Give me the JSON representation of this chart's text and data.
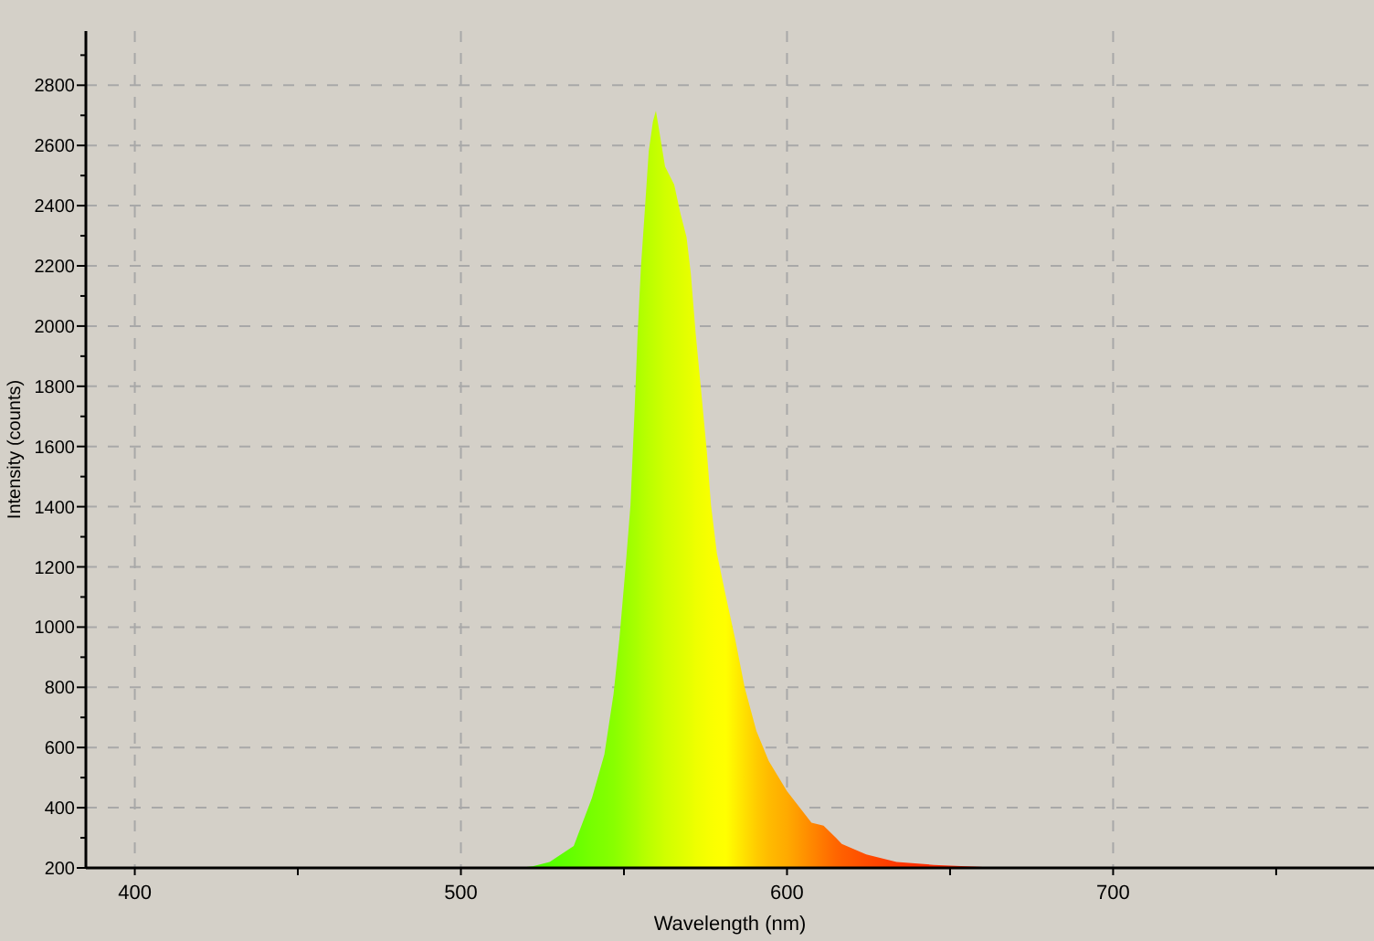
{
  "chart_data": {
    "type": "area",
    "xlabel": "Wavelength (nm)",
    "ylabel": "Intensity (counts)",
    "xlim": [
      385,
      780
    ],
    "ylim": [
      200,
      2980
    ],
    "xticks": [
      400,
      {
        "value": 450,
        "label": null
      },
      500,
      {
        "value": 550,
        "label": null
      },
      600,
      {
        "value": 650,
        "label": null
      },
      700,
      {
        "value": 750,
        "label": null
      }
    ],
    "yticks": [
      200,
      {
        "value": 300,
        "label": null
      },
      400,
      {
        "value": 500,
        "label": null
      },
      600,
      {
        "value": 700,
        "label": null
      },
      800,
      {
        "value": 900,
        "label": null
      },
      1000,
      {
        "value": 1100,
        "label": null
      },
      1200,
      {
        "value": 1300,
        "label": null
      },
      1400,
      {
        "value": 1500,
        "label": null
      },
      1600,
      {
        "value": 1700,
        "label": null
      },
      1800,
      {
        "value": 1900,
        "label": null
      },
      2000,
      {
        "value": 2100,
        "label": null
      },
      2200,
      {
        "value": 2300,
        "label": null
      },
      2400,
      {
        "value": 2500,
        "label": null
      },
      2600,
      {
        "value": 2700,
        "label": null
      },
      2800,
      {
        "value": 2900,
        "label": null
      }
    ],
    "grid": true,
    "series": [
      {
        "x": [
          517.6,
          522,
          527.2,
          534.6,
          540.2,
          544,
          546.8,
          548.6,
          550.5,
          552,
          553.3,
          554.2,
          555.2,
          556.5,
          557.6,
          558.9,
          559.8,
          560.8,
          562.6,
          565.4,
          567.3,
          569.2,
          570.5,
          572,
          573.8,
          575.4,
          576.7,
          578.5,
          581.3,
          584.1,
          587,
          590.6,
          594.4,
          600,
          607.5,
          611.2,
          615,
          616.8,
          624.3,
          633.6,
          645,
          655,
          667
        ],
        "values": [
          200,
          205,
          220,
          273,
          433,
          577,
          777,
          960,
          1200,
          1405,
          1730,
          1975,
          2195,
          2400,
          2580,
          2680,
          2715,
          2650,
          2530,
          2470,
          2375,
          2295,
          2175,
          1975,
          1770,
          1585,
          1405,
          1245,
          1100,
          960,
          800,
          655,
          555,
          455,
          350,
          340,
          300,
          280,
          245,
          220,
          210,
          205,
          200
        ],
        "colors": [
          "#44ff00",
          "#4cff00",
          "#55ff00",
          "#66ff00",
          "#77ff00",
          "#80ff00",
          "#88ff00",
          "#90ff00",
          "#99ff00",
          "#a0ff00",
          "#a6ff00",
          "#aaff00",
          "#b0ff00",
          "#b6ff00",
          "#bbff00",
          "#c0ff00",
          "#c4ff00",
          "#c8ff00",
          "#d0ff00",
          "#d8ff00",
          "#deff00",
          "#e4ff00",
          "#e8ff00",
          "#eeff00",
          "#f2ff00",
          "#f6ff00",
          "#f9ff00",
          "#fcff00",
          "#ffff00",
          "#fff000",
          "#ffe000",
          "#ffcc00",
          "#ffbb00",
          "#ffaa00",
          "#ff8800",
          "#ff7700",
          "#ff6600",
          "#ff6000",
          "#ff4c00",
          "#ff3800",
          "#ff2a00",
          "#ff2200",
          "#ff1a00"
        ]
      }
    ]
  }
}
